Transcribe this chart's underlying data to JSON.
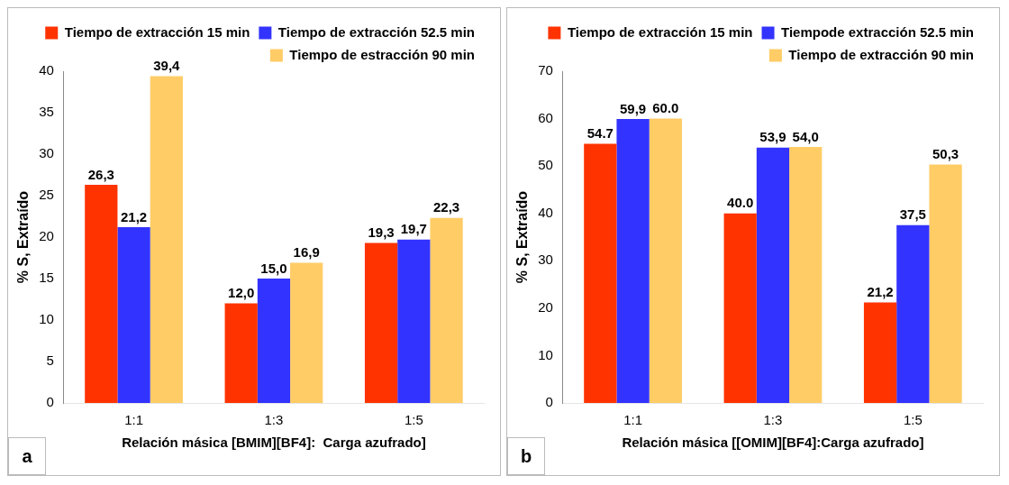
{
  "chart_data": [
    {
      "type": "bar",
      "xlabel": "Relación másica [BMIM][BF4]:  Carga azufrado]",
      "ylabel": "% S, Extraído",
      "categories": [
        "1:1",
        "1:3",
        "1:5"
      ],
      "series": [
        {
          "name": "Tiempo de extracción 15 min",
          "color": "#ff3300",
          "values": [
            26.3,
            12.0,
            19.3
          ],
          "value_labels": [
            "26,3",
            "12,0",
            "19,3"
          ]
        },
        {
          "name": "Tiempo de extracción 52.5 min",
          "color": "#3333ff",
          "values": [
            21.2,
            15.0,
            19.7
          ],
          "value_labels": [
            "21,2",
            "15,0",
            "19,7"
          ]
        },
        {
          "name": "Tiempo de estracción 90 min",
          "color": "#ffcc66",
          "values": [
            39.4,
            16.9,
            22.3
          ],
          "value_labels": [
            "39,4",
            "16,9",
            "22,3"
          ]
        }
      ],
      "ylim": [
        0,
        40
      ],
      "yticks": [
        0,
        5,
        10,
        15,
        20,
        25,
        30,
        35,
        40
      ],
      "grid": false,
      "legend": "top right",
      "annotations": [
        "a"
      ]
    },
    {
      "type": "bar",
      "xlabel": "Relación másica [[OMIM][BF4]:Carga azufrado]",
      "ylabel": "% S, Extraído",
      "categories": [
        "1:1",
        "1:3",
        "1:5"
      ],
      "series": [
        {
          "name": "Tiempo de extracción 15 min",
          "color": "#ff3300",
          "values": [
            54.7,
            40.0,
            21.2
          ],
          "value_labels": [
            "54.7",
            "40.0",
            "21,2"
          ]
        },
        {
          "name": "Tiempode extracción 52.5 min",
          "color": "#3333ff",
          "values": [
            59.9,
            53.9,
            37.5
          ],
          "value_labels": [
            "59,9",
            "53,9",
            "37,5"
          ]
        },
        {
          "name": "Tiempo de extracción 90 min",
          "color": "#ffcc66",
          "values": [
            60.0,
            54.0,
            50.3
          ],
          "value_labels": [
            "60.0",
            "54,0",
            "50,3"
          ]
        }
      ],
      "ylim": [
        0,
        70
      ],
      "yticks": [
        0,
        10,
        20,
        30,
        40,
        50,
        60,
        70
      ],
      "grid": false,
      "legend": "top right",
      "annotations": [
        "b"
      ]
    }
  ]
}
